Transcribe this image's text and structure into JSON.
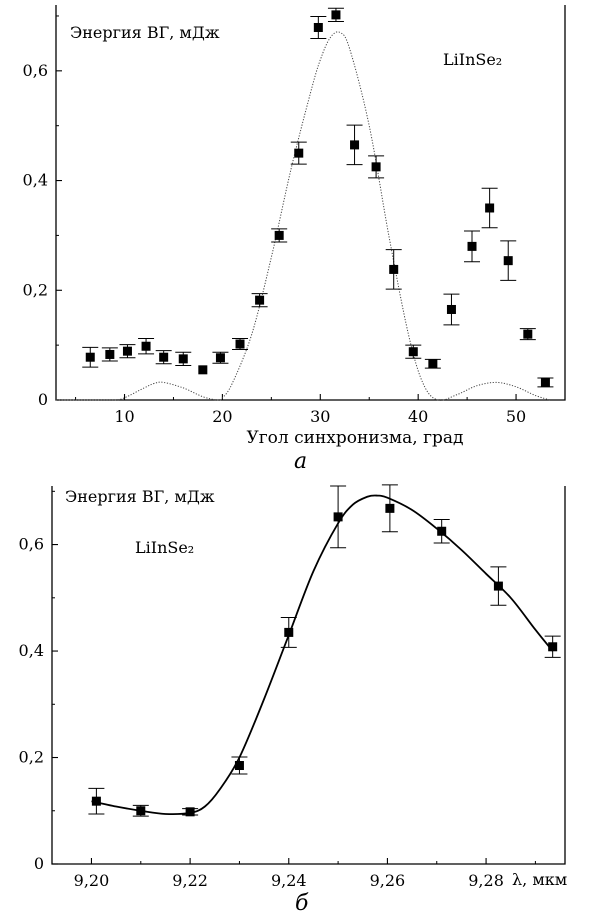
{
  "chart_data": [
    {
      "type": "scatter",
      "panel_label": "а",
      "xlabel": "Угол синхронизма, град",
      "annotation_energy": "Энергия ВГ, мДж",
      "annotation_crystal": "LiInSe₂",
      "xlim": [
        3,
        55
      ],
      "ylim": [
        0,
        0.72
      ],
      "x_ticks": [
        10,
        20,
        30,
        40,
        50
      ],
      "x_tick_labels": [
        "10",
        "20",
        "30",
        "40",
        "50"
      ],
      "y_ticks": [
        0,
        0.2,
        0.4,
        0.6
      ],
      "y_tick_labels": [
        "0",
        "0,2",
        "0,4",
        "0,6"
      ],
      "series": [
        {
          "kind": "points",
          "x": [
            6.5,
            8.5,
            10.3,
            12.2,
            14,
            16,
            18,
            19.8,
            21.8,
            23.8,
            25.8,
            27.8,
            29.8,
            31.6,
            33.5,
            35.7,
            37.5,
            39.5,
            41.5,
            43.4,
            45.5,
            47.3,
            49.2,
            51.2,
            53
          ],
          "y": [
            0.078,
            0.083,
            0.089,
            0.098,
            0.078,
            0.075,
            0.055,
            0.077,
            0.102,
            0.182,
            0.3,
            0.45,
            0.679,
            0.702,
            0.465,
            0.425,
            0.238,
            0.088,
            0.066,
            0.165,
            0.28,
            0.35,
            0.254,
            0.12,
            0.032
          ],
          "err": [
            0.018,
            0.012,
            0.012,
            0.014,
            0.012,
            0.012,
            0,
            0.01,
            0.01,
            0.012,
            0.012,
            0.02,
            0.02,
            0.012,
            0.036,
            0.02,
            0.036,
            0.012,
            0.008,
            0.028,
            0.028,
            0.036,
            0.036,
            0.01,
            0.008
          ]
        },
        {
          "kind": "dotted-curve",
          "x": [
            3,
            5,
            7,
            9,
            10,
            12,
            13,
            14,
            16,
            18,
            19.5,
            20,
            21,
            23,
            25,
            27,
            29,
            30,
            31,
            32,
            33,
            35,
            37,
            39,
            40.5,
            42,
            44,
            46,
            48,
            50,
            52,
            53.5
          ],
          "y": [
            0,
            0,
            0,
            0,
            0.004,
            0.022,
            0.03,
            0.032,
            0.022,
            0.006,
            0,
            0.004,
            0.03,
            0.12,
            0.26,
            0.42,
            0.56,
            0.62,
            0.66,
            0.67,
            0.64,
            0.5,
            0.3,
            0.12,
            0.03,
            0,
            0.01,
            0.026,
            0.032,
            0.024,
            0.008,
            0
          ]
        }
      ]
    },
    {
      "type": "line",
      "panel_label": "б",
      "xlabel": "λ, мкм",
      "annotation_energy": "Энергия ВГ, мДж",
      "annotation_crystal": "LiInSe₂",
      "xlim": [
        9.192,
        9.296
      ],
      "ylim": [
        0,
        0.71
      ],
      "x_ticks": [
        9.2,
        9.22,
        9.24,
        9.26,
        9.28
      ],
      "x_tick_labels": [
        "9,20",
        "9,22",
        "9,24",
        "9,26",
        "9,28"
      ],
      "y_ticks": [
        0,
        0.2,
        0.4,
        0.6
      ],
      "y_tick_labels": [
        "0",
        "0,2",
        "0,4",
        "0,6"
      ],
      "series": [
        {
          "kind": "points",
          "x": [
            9.201,
            9.21,
            9.22,
            9.23,
            9.24,
            9.25,
            9.2605,
            9.271,
            9.2825,
            9.2935
          ],
          "y": [
            0.118,
            0.1,
            0.098,
            0.185,
            0.435,
            0.652,
            0.668,
            0.625,
            0.522,
            0.408
          ],
          "err": [
            0.024,
            0.01,
            0.006,
            0.016,
            0.028,
            0.058,
            0.044,
            0.022,
            0.036,
            0.02
          ]
        },
        {
          "kind": "smooth-curve",
          "x": [
            9.2,
            9.205,
            9.21,
            9.215,
            9.22,
            9.223,
            9.226,
            9.23,
            9.235,
            9.24,
            9.245,
            9.25,
            9.253,
            9.256,
            9.258,
            9.26,
            9.265,
            9.27,
            9.275,
            9.28,
            9.285,
            9.29,
            9.2935
          ],
          "y": [
            0.118,
            0.108,
            0.1,
            0.094,
            0.096,
            0.108,
            0.14,
            0.2,
            0.31,
            0.43,
            0.55,
            0.64,
            0.675,
            0.69,
            0.692,
            0.688,
            0.665,
            0.63,
            0.59,
            0.545,
            0.5,
            0.44,
            0.4
          ]
        }
      ]
    }
  ]
}
